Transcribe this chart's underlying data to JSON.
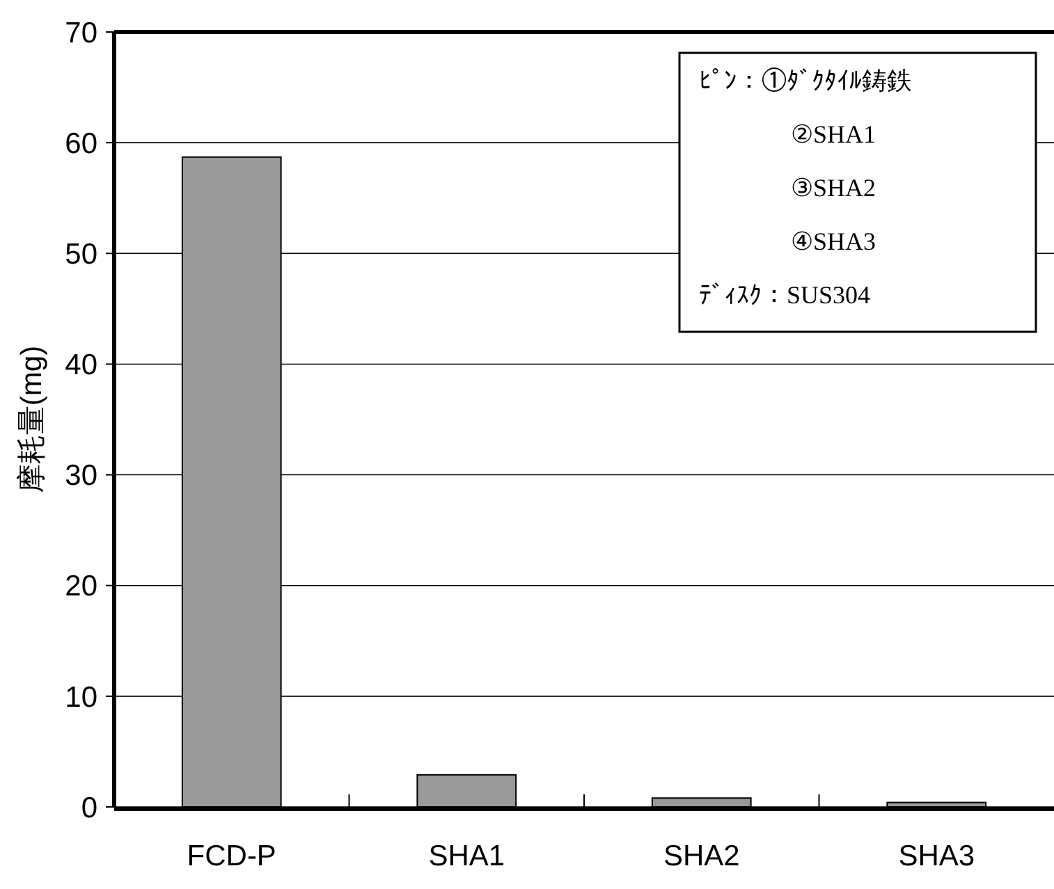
{
  "chart_data": {
    "type": "bar",
    "ylabel": "摩耗量(mg)",
    "categories": [
      "FCD-P",
      "SHA1",
      "SHA2",
      "SHA3"
    ],
    "values": [
      58.7,
      2.9,
      0.8,
      0.4
    ],
    "color": "#9a9a9a",
    "ylim": [
      0,
      70
    ],
    "yticks": [
      0,
      10,
      20,
      30,
      40,
      50,
      60,
      70
    ],
    "grid": "y",
    "annotations": [
      "ﾋﾟﾝ：①ﾀﾞｸﾀｲﾙ鋳鉄",
      "②SHA1",
      "③SHA2",
      "④SHA3",
      "ﾃﾞｨｽｸ：SUS304"
    ]
  }
}
